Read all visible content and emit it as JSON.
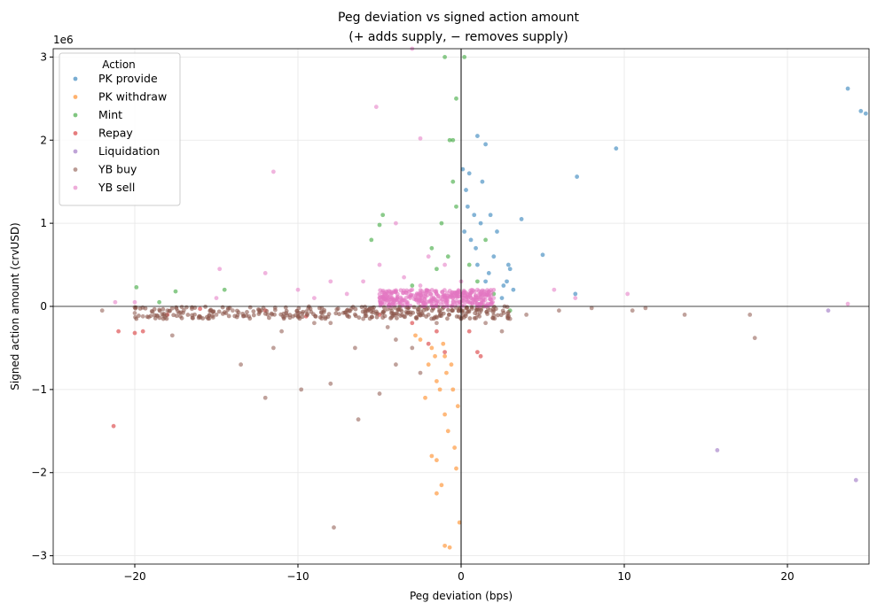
{
  "chart_data": {
    "type": "scatter",
    "title": "Peg deviation vs signed action amount",
    "subtitle": "(+ adds supply, − removes supply)",
    "xlabel": "Peg deviation (bps)",
    "ylabel": "Signed action amount (crvUSD)",
    "y_offset_label": "1e6",
    "xlim": [
      -25,
      25
    ],
    "ylim": [
      -3.1,
      3.1
    ],
    "y_scale": 1000000,
    "xticks": [
      -20,
      -10,
      0,
      10,
      20
    ],
    "xtick_labels": [
      "−20",
      "−10",
      "0",
      "10",
      "20"
    ],
    "yticks": [
      -3,
      -2,
      -1,
      0,
      1,
      2,
      3
    ],
    "ytick_labels": [
      "−3",
      "−2",
      "−1",
      "0",
      "1",
      "2",
      "3"
    ],
    "grid": true,
    "legend": {
      "title": "Action",
      "placement": "top-left"
    },
    "series": [
      {
        "name": "PK provide",
        "color": "#1f77b4",
        "points": [
          [
            0.5,
            1.6
          ],
          [
            0.3,
            1.4
          ],
          [
            1,
            2.05
          ],
          [
            1.5,
            1.95
          ],
          [
            0.8,
            1.1
          ],
          [
            1.2,
            1.0
          ],
          [
            1.8,
            1.1
          ],
          [
            2,
            0.6
          ],
          [
            3,
            0.45
          ],
          [
            2.8,
            0.3
          ],
          [
            3.2,
            0.2
          ],
          [
            0.6,
            0.8
          ],
          [
            1.0,
            0.5
          ],
          [
            1.5,
            0.3
          ],
          [
            2.5,
            0.1
          ],
          [
            3.7,
            1.05
          ],
          [
            5,
            0.62
          ],
          [
            7.1,
            1.56
          ],
          [
            9.5,
            1.9
          ],
          [
            23.7,
            2.62
          ],
          [
            24.5,
            2.35
          ],
          [
            24.8,
            2.32
          ],
          [
            7,
            0.15
          ],
          [
            0.2,
            0.9
          ],
          [
            1.3,
            1.5
          ],
          [
            2.2,
            0.9
          ],
          [
            2.9,
            0.5
          ],
          [
            0.4,
            1.2
          ],
          [
            0.9,
            0.7
          ],
          [
            1.7,
            0.4
          ],
          [
            2.6,
            0.25
          ],
          [
            0.1,
            1.65
          ]
        ]
      },
      {
        "name": "PK withdraw",
        "color": "#ff7f0e",
        "points": [
          [
            -1,
            -2.88
          ],
          [
            -0.7,
            -2.9
          ],
          [
            -1.5,
            -2.25
          ],
          [
            -1.2,
            -2.15
          ],
          [
            -1.8,
            -1.8
          ],
          [
            -1.5,
            -1.85
          ],
          [
            -0.3,
            -1.95
          ],
          [
            -0.1,
            -2.6
          ],
          [
            -1,
            -1.3
          ],
          [
            -2,
            -0.7
          ],
          [
            -1.5,
            -0.9
          ],
          [
            -0.5,
            -1.0
          ],
          [
            -1.8,
            -0.5
          ],
          [
            -1,
            -0.6
          ],
          [
            -2.5,
            -0.4
          ],
          [
            -0.8,
            -1.5
          ],
          [
            -0.4,
            -1.7
          ],
          [
            -2.2,
            -1.1
          ],
          [
            -1.3,
            -1.0
          ],
          [
            -0.2,
            -1.2
          ],
          [
            -1.6,
            -0.6
          ],
          [
            -0.9,
            -0.8
          ],
          [
            -1.1,
            -0.45
          ],
          [
            -0.6,
            -0.7
          ],
          [
            -2.8,
            -0.35
          ]
        ]
      },
      {
        "name": "Mint",
        "color": "#2ca02c",
        "points": [
          [
            -1,
            3.0
          ],
          [
            0.2,
            3.0
          ],
          [
            -0.3,
            2.5
          ],
          [
            -0.7,
            2.0
          ],
          [
            -0.5,
            2.0
          ],
          [
            -5,
            0.98
          ],
          [
            -4.8,
            1.1
          ],
          [
            -5.5,
            0.8
          ],
          [
            -14.5,
            0.2
          ],
          [
            -19.9,
            0.23
          ],
          [
            -17.5,
            0.18
          ],
          [
            -18.5,
            0.05
          ],
          [
            -1.5,
            0.45
          ],
          [
            -1.2,
            1.0
          ],
          [
            -0.8,
            0.6
          ],
          [
            0.5,
            0.5
          ],
          [
            1,
            0.3
          ],
          [
            1.5,
            0.8
          ],
          [
            2,
            0.15
          ],
          [
            -0.3,
            1.2
          ],
          [
            -1.8,
            0.7
          ],
          [
            -0.5,
            1.5
          ],
          [
            3,
            -0.05
          ],
          [
            -3,
            0.25
          ]
        ]
      },
      {
        "name": "Repay",
        "color": "#d62728",
        "points": [
          [
            -21.3,
            -1.44
          ],
          [
            -19.5,
            -0.3
          ],
          [
            -20,
            -0.32
          ],
          [
            -21,
            -0.3
          ],
          [
            -9.5,
            -0.12
          ],
          [
            -12,
            -0.05
          ],
          [
            -2,
            -0.45
          ],
          [
            -1,
            -0.55
          ],
          [
            1,
            -0.55
          ],
          [
            1.2,
            -0.6
          ],
          [
            -3,
            -0.2
          ],
          [
            -5,
            -0.1
          ],
          [
            -16,
            -0.03
          ],
          [
            -18,
            -0.1
          ],
          [
            -1.5,
            -0.3
          ],
          [
            0.5,
            -0.3
          ]
        ]
      },
      {
        "name": "Liquidation",
        "color": "#9467bd",
        "points": [
          [
            15.7,
            -1.73
          ],
          [
            24.2,
            -2.09
          ],
          [
            22.5,
            -0.05
          ]
        ]
      },
      {
        "name": "YB buy",
        "color": "#8c564b",
        "points": [
          [
            -7.8,
            -2.66
          ],
          [
            -13.5,
            -0.7
          ],
          [
            -12,
            -1.1
          ],
          [
            -9.8,
            -1.0
          ],
          [
            -8,
            -0.93
          ],
          [
            -6.3,
            -1.36
          ],
          [
            -5,
            -1.05
          ],
          [
            -4,
            -0.7
          ],
          [
            -3,
            -0.5
          ],
          [
            -17.7,
            -0.35
          ],
          [
            -19.5,
            -0.12
          ],
          [
            -15,
            -0.1
          ],
          [
            -11,
            -0.3
          ],
          [
            -8,
            -0.2
          ],
          [
            -6,
            -0.15
          ],
          [
            -2,
            -0.1
          ],
          [
            -0.5,
            -0.05
          ],
          [
            1,
            -0.1
          ],
          [
            2,
            -0.05
          ],
          [
            2.5,
            -0.3
          ],
          [
            4,
            -0.1
          ],
          [
            6,
            -0.05
          ],
          [
            8,
            -0.02
          ],
          [
            10.5,
            -0.05
          ],
          [
            11.3,
            -0.02
          ],
          [
            13.7,
            -0.1
          ],
          [
            17.7,
            -0.1
          ],
          [
            18,
            -0.38
          ],
          [
            -22,
            -0.05
          ],
          [
            -20,
            -0.08
          ],
          [
            -18,
            -0.05
          ],
          [
            -16.5,
            -0.03
          ],
          [
            -14,
            -0.05
          ],
          [
            -13,
            -0.12
          ],
          [
            -10,
            -0.08
          ],
          [
            -9,
            -0.2
          ],
          [
            -7,
            -0.1
          ],
          [
            -4.5,
            -0.25
          ],
          [
            -3.5,
            -0.12
          ],
          [
            -1.5,
            -0.2
          ],
          [
            0,
            -0.15
          ],
          [
            1.5,
            -0.2
          ],
          [
            3,
            -0.15
          ],
          [
            -4,
            -0.4
          ],
          [
            -6.5,
            -0.5
          ],
          [
            -11.5,
            -0.5
          ],
          [
            -2.5,
            -0.8
          ]
        ],
        "bands": [
          {
            "x_range": [
              -20,
              3
            ],
            "y_range": [
              -0.15,
              0
            ]
          }
        ]
      },
      {
        "name": "YB sell",
        "color": "#e377c2",
        "points": [
          [
            -3,
            3.1
          ],
          [
            -5.2,
            2.4
          ],
          [
            -2.5,
            2.02
          ],
          [
            -11.5,
            1.62
          ],
          [
            -4,
            1.0
          ],
          [
            -5,
            0.5
          ],
          [
            -6,
            0.3
          ],
          [
            -8,
            0.3
          ],
          [
            -10,
            0.2
          ],
          [
            -12,
            0.4
          ],
          [
            -14.8,
            0.45
          ],
          [
            -15,
            0.1
          ],
          [
            -20,
            0.05
          ],
          [
            -21.2,
            0.05
          ],
          [
            5.7,
            0.2
          ],
          [
            7,
            0.1
          ],
          [
            10.2,
            0.15
          ],
          [
            23.7,
            0.03
          ],
          [
            -2,
            0.6
          ],
          [
            -1,
            0.5
          ],
          [
            0,
            0.3
          ],
          [
            1,
            0.2
          ],
          [
            2,
            0.1
          ],
          [
            -3,
            0.2
          ],
          [
            -7,
            0.15
          ],
          [
            -9,
            0.1
          ],
          [
            -1.5,
            0.15
          ],
          [
            -0.5,
            0.1
          ],
          [
            -4.5,
            0.1
          ],
          [
            -3.5,
            0.35
          ],
          [
            -2.5,
            0.25
          ]
        ],
        "bands": [
          {
            "x_range": [
              -5,
              2
            ],
            "y_range": [
              0,
              0.2
            ]
          }
        ]
      }
    ]
  }
}
